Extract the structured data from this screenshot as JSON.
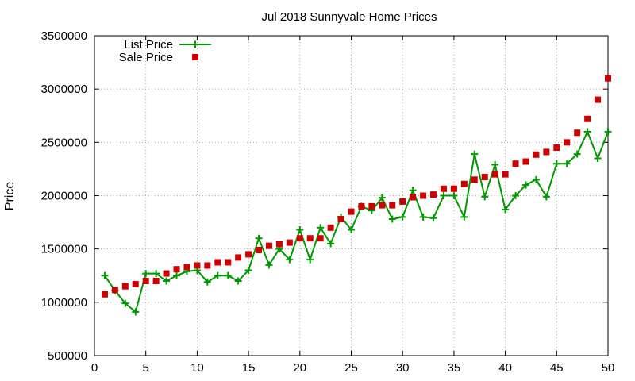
{
  "chart_data": {
    "type": "line",
    "title": "Jul 2018 Sunnyvale Home Prices",
    "xlabel": "",
    "ylabel": "Price",
    "xlim": [
      0,
      50
    ],
    "ylim": [
      500000,
      3500000
    ],
    "xticks": [
      0,
      5,
      10,
      15,
      20,
      25,
      30,
      35,
      40,
      45,
      50
    ],
    "yticks": [
      500000,
      1000000,
      1500000,
      2000000,
      2500000,
      3000000,
      3500000
    ],
    "grid": true,
    "legend_position": "top-left",
    "series": [
      {
        "name": "List Price",
        "style": "line-with-plus-markers",
        "color": "#009900",
        "x": [
          1,
          2,
          3,
          4,
          5,
          6,
          7,
          8,
          9,
          10,
          11,
          12,
          13,
          14,
          15,
          16,
          17,
          18,
          19,
          20,
          21,
          22,
          23,
          24,
          25,
          26,
          27,
          28,
          29,
          30,
          31,
          32,
          33,
          34,
          35,
          36,
          37,
          38,
          39,
          40,
          41,
          42,
          43,
          44,
          45,
          46,
          47,
          48,
          49,
          50
        ],
        "values": [
          1250000,
          1110000,
          990000,
          910000,
          1270000,
          1270000,
          1200000,
          1250000,
          1290000,
          1300000,
          1190000,
          1250000,
          1250000,
          1200000,
          1300000,
          1600000,
          1350000,
          1500000,
          1400000,
          1680000,
          1400000,
          1700000,
          1550000,
          1800000,
          1680000,
          1900000,
          1860000,
          1980000,
          1780000,
          1800000,
          2050000,
          1800000,
          1790000,
          2000000,
          2000000,
          1800000,
          2390000,
          1990000,
          2290000,
          1870000,
          2000000,
          2100000,
          2150000,
          1990000,
          2300000,
          2300000,
          2390000,
          2600000,
          2350000,
          2600000
        ]
      },
      {
        "name": "Sale Price",
        "style": "square-markers",
        "color": "#cc0000",
        "x": [
          1,
          2,
          3,
          4,
          5,
          6,
          7,
          8,
          9,
          10,
          11,
          12,
          13,
          14,
          15,
          16,
          17,
          18,
          19,
          20,
          21,
          22,
          23,
          24,
          25,
          26,
          27,
          28,
          29,
          30,
          31,
          32,
          33,
          34,
          35,
          36,
          37,
          38,
          39,
          40,
          41,
          42,
          43,
          44,
          45,
          46,
          47,
          48,
          49,
          50
        ],
        "values": [
          1075000,
          1115000,
          1150000,
          1170000,
          1200000,
          1200000,
          1270000,
          1310000,
          1330000,
          1345000,
          1345000,
          1375000,
          1375000,
          1420000,
          1450000,
          1490000,
          1530000,
          1545000,
          1560000,
          1600000,
          1600000,
          1600000,
          1700000,
          1780000,
          1850000,
          1900000,
          1900000,
          1910000,
          1910000,
          1945000,
          1985000,
          2000000,
          2010000,
          2065000,
          2065000,
          2110000,
          2150000,
          2175000,
          2200000,
          2200000,
          2300000,
          2320000,
          2385000,
          2410000,
          2450000,
          2500000,
          2590000,
          2720000,
          2900000,
          3100000
        ]
      }
    ]
  }
}
